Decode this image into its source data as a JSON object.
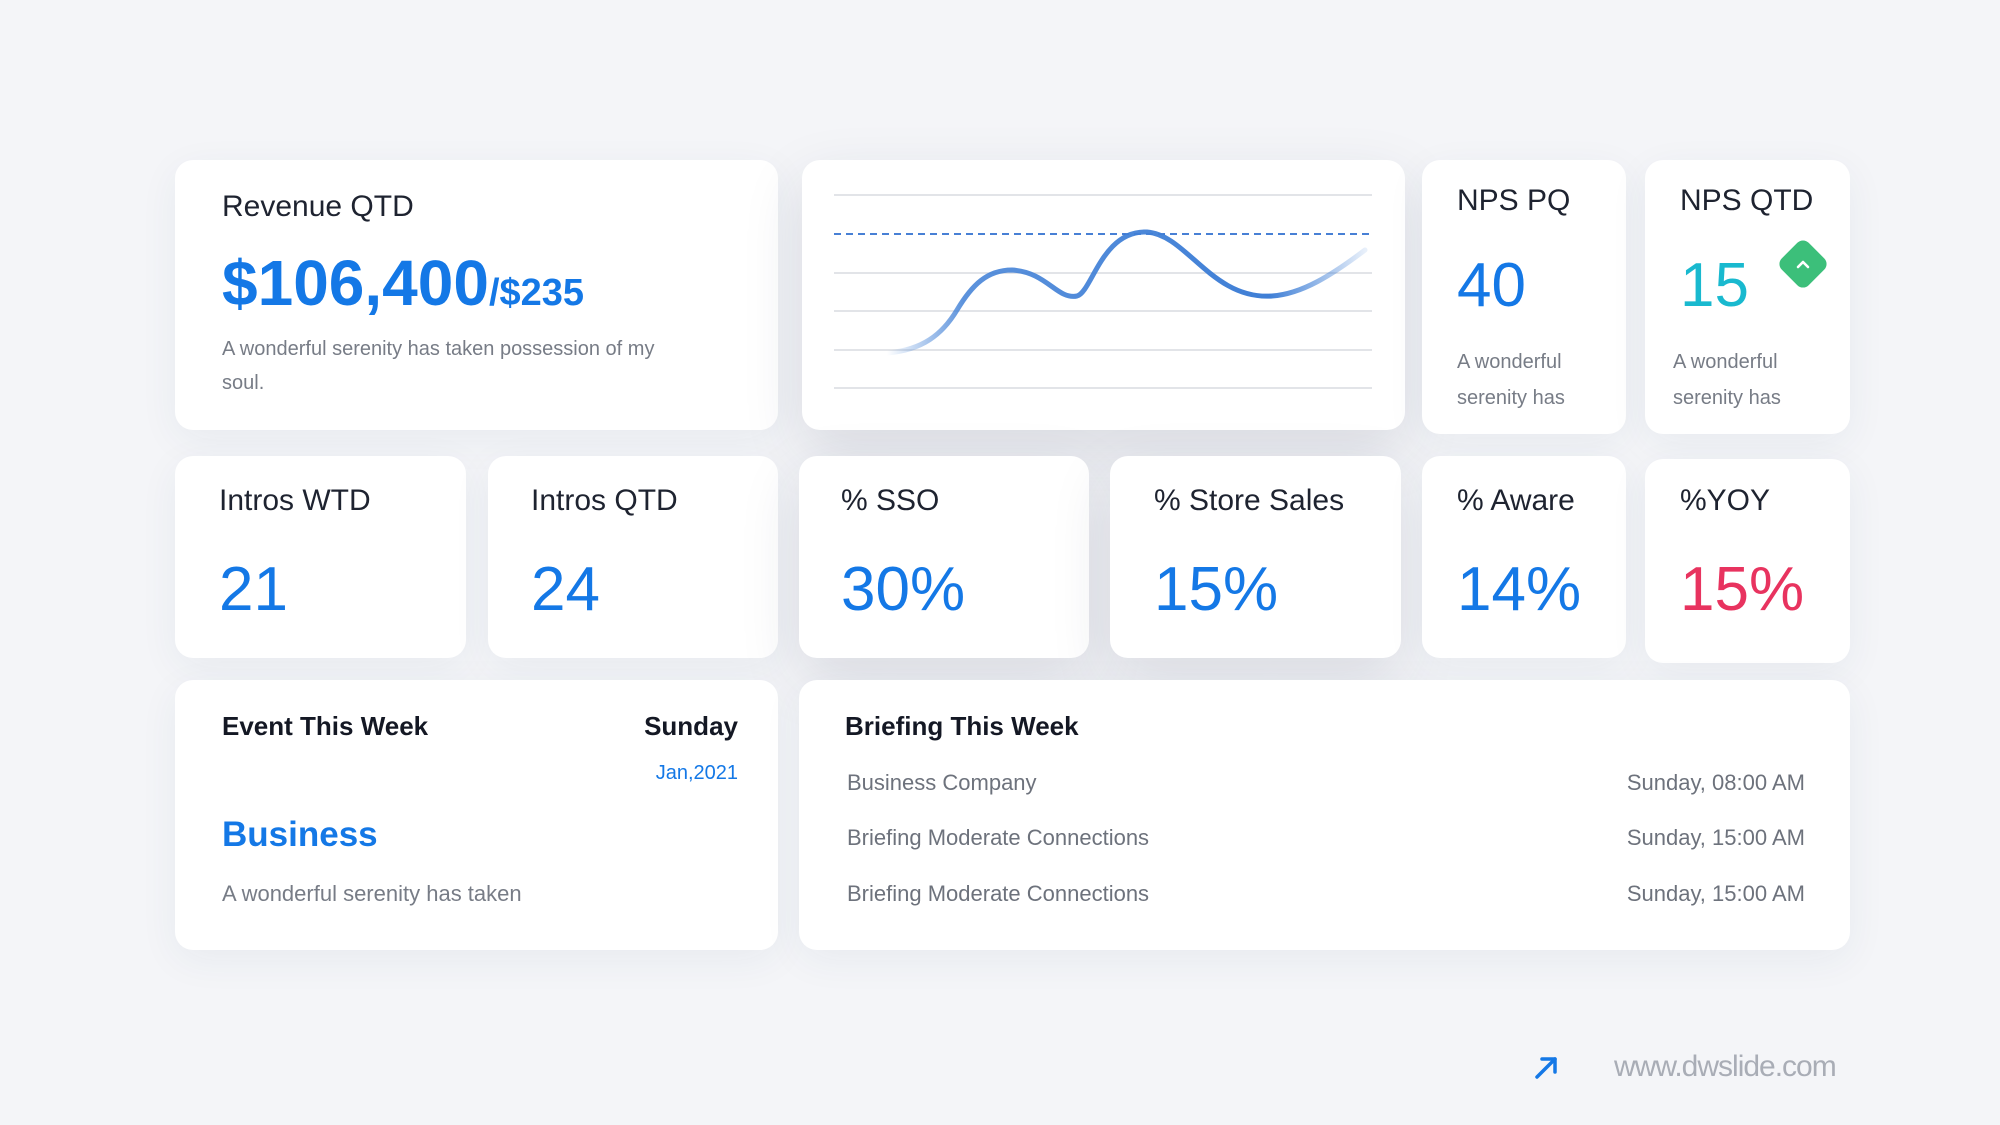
{
  "revenue": {
    "title": "Revenue QTD",
    "amount": "$106,400",
    "sub_amount": "/$235",
    "description": "A wonderful serenity has taken possession of my soul."
  },
  "trend_chart": {
    "type": "line",
    "gridlines": 6,
    "target_line": "dashed",
    "line_color": "#3f7fd6"
  },
  "nps_pq": {
    "title": "NPS PQ",
    "value": "40",
    "description": "A wonderful serenity has"
  },
  "nps_qtd": {
    "title": "NPS QTD",
    "value": "15",
    "description": "A wonderful serenity has",
    "badge_icon": "chevron-up-icon",
    "badge_color": "#3cbf7a",
    "value_color": "#19b9cf"
  },
  "metrics": [
    {
      "title": "Intros WTD",
      "value": "21"
    },
    {
      "title": "Intros QTD",
      "value": "24"
    },
    {
      "title": "% SSO",
      "value": "30%"
    },
    {
      "title": "% Store Sales",
      "value": "15%"
    },
    {
      "title": "% Aware",
      "value": "14%"
    },
    {
      "title": "%YOY",
      "value": "15%",
      "color": "#e8335f"
    }
  ],
  "event": {
    "heading": "Event This Week",
    "day": "Sunday",
    "date": "Jan,2021",
    "name": "Business",
    "description": "A wonderful serenity has taken"
  },
  "briefing": {
    "heading": "Briefing This Week",
    "rows": [
      {
        "name": "Business Company",
        "time": "Sunday, 08:00 AM"
      },
      {
        "name": "Briefing Moderate Connections",
        "time": "Sunday, 15:00 AM"
      },
      {
        "name": "Briefing Moderate Connections",
        "time": "Sunday, 15:00 AM"
      }
    ]
  },
  "footer": {
    "url": "www.dwslide.com",
    "icon": "arrow-up-right-icon",
    "accent": "#1478e6"
  }
}
